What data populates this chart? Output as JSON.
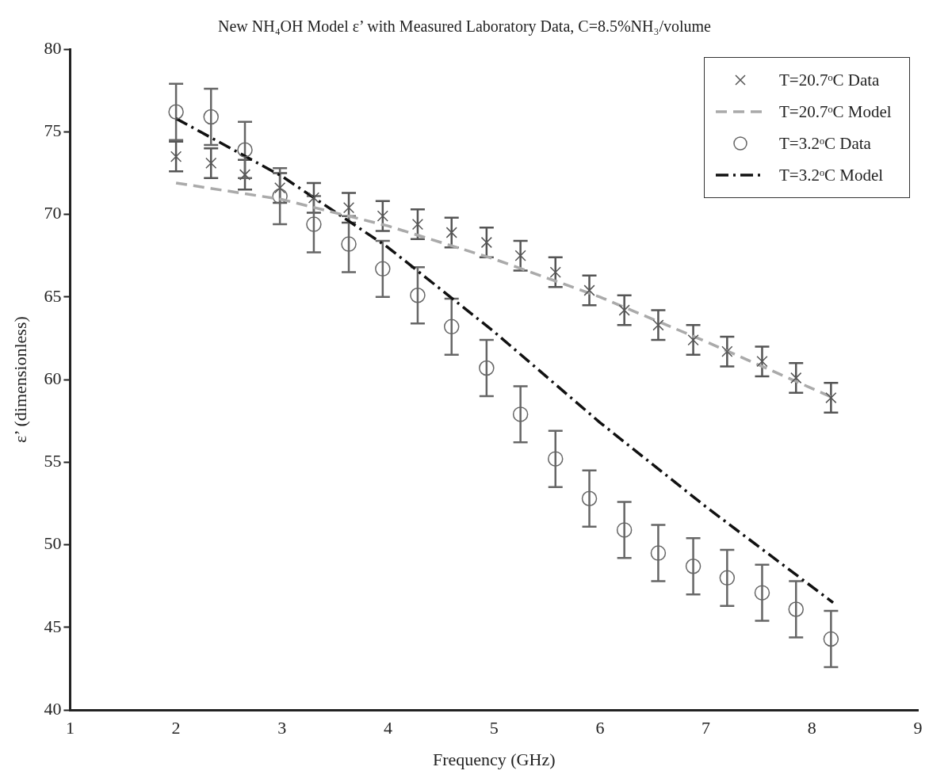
{
  "chart_data": {
    "type": "scatter",
    "title": "New NH₄OH Model ε’ with Measured Laboratory Data, C=8.5%NH₃/volume",
    "xlabel": "Frequency (GHz)",
    "ylabel": "ε’ (dimensionless)",
    "xlim": [
      1,
      9
    ],
    "xticks": [
      1,
      2,
      3,
      4,
      5,
      6,
      7,
      8,
      9
    ],
    "ylim": [
      40,
      80
    ],
    "yticks": [
      40,
      45,
      50,
      55,
      60,
      65,
      70,
      75,
      80
    ],
    "grid": false,
    "legend": "top right",
    "series": [
      {
        "name": "T=20.7ᵒC Data",
        "marker": "cross",
        "color": "#555555",
        "x": [
          2.0,
          2.33,
          2.65,
          2.98,
          3.3,
          3.63,
          3.95,
          4.28,
          4.6,
          4.93,
          5.25,
          5.58,
          5.9,
          6.23,
          6.55,
          6.88,
          7.2,
          7.53,
          7.85,
          8.18
        ],
        "values": [
          73.5,
          73.1,
          72.4,
          71.6,
          71.0,
          70.4,
          69.9,
          69.4,
          68.9,
          68.3,
          67.5,
          66.5,
          65.4,
          64.2,
          63.3,
          62.4,
          61.7,
          61.1,
          60.1,
          58.9
        ],
        "errors": [
          0.9,
          0.9,
          0.9,
          0.9,
          0.9,
          0.9,
          0.9,
          0.9,
          0.9,
          0.9,
          0.9,
          0.9,
          0.9,
          0.9,
          0.9,
          0.9,
          0.9,
          0.9,
          0.9,
          0.9
        ]
      },
      {
        "name": "T=20.7ᵒC Model",
        "type": "line",
        "marker": "none",
        "line_style": "dashed",
        "color": "#aaaaaa",
        "x": [
          2.0,
          3.0,
          4.0,
          5.0,
          6.0,
          7.0,
          8.2
        ],
        "values": [
          71.9,
          70.9,
          69.3,
          67.3,
          65.0,
          62.3,
          58.9
        ]
      },
      {
        "name": "T=3.2ᵒC Data",
        "marker": "circle",
        "color": "#666666",
        "x": [
          2.0,
          2.33,
          2.65,
          2.98,
          3.3,
          3.63,
          3.95,
          4.28,
          4.6,
          4.93,
          5.25,
          5.58,
          5.9,
          6.23,
          6.55,
          6.88,
          7.2,
          7.53,
          7.85,
          8.18
        ],
        "values": [
          76.2,
          75.9,
          73.9,
          71.1,
          69.4,
          68.2,
          66.7,
          65.1,
          63.2,
          60.7,
          57.9,
          55.2,
          52.8,
          50.9,
          49.5,
          48.7,
          48.0,
          47.1,
          46.1,
          44.3
        ],
        "errors": [
          1.7,
          1.7,
          1.7,
          1.7,
          1.7,
          1.7,
          1.7,
          1.7,
          1.7,
          1.7,
          1.7,
          1.7,
          1.7,
          1.7,
          1.7,
          1.7,
          1.7,
          1.7,
          1.7,
          1.7
        ]
      },
      {
        "name": "T=3.2ᵒC Model",
        "type": "line",
        "marker": "none",
        "line_style": "dashdot",
        "color": "#111111",
        "x": [
          2.0,
          3.0,
          4.0,
          5.0,
          6.0,
          7.0,
          8.2
        ],
        "values": [
          75.8,
          72.3,
          68.0,
          62.9,
          57.4,
          52.3,
          46.5
        ]
      }
    ]
  }
}
